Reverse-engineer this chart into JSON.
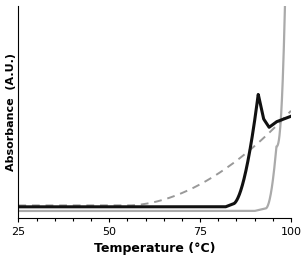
{
  "title": "",
  "xlabel": "Temperature (°C)",
  "ylabel": "Absorbance  (A.U.)",
  "xlim": [
    25,
    100
  ],
  "background_color": "#ffffff",
  "line_black_solid": {
    "color": "#111111",
    "linewidth": 2.2
  },
  "line_grey_solid": {
    "color": "#aaaaaa",
    "linewidth": 1.6
  },
  "line_grey_dashed": {
    "color": "#999999",
    "linewidth": 1.4,
    "dashes": [
      4,
      3
    ]
  }
}
